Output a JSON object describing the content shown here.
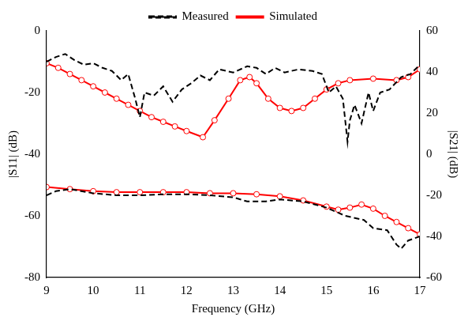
{
  "chart_data": {
    "type": "line",
    "x_label": "Frequency (GHz)",
    "y_label": "|S11| (dB)",
    "y2_label": "|S21| (dB)",
    "xlim": [
      9,
      17
    ],
    "xticks": [
      9,
      10,
      11,
      12,
      13,
      14,
      15,
      16,
      17
    ],
    "ylim": [
      -80,
      0
    ],
    "yticks": [
      -80,
      -60,
      -40,
      -20,
      0
    ],
    "y2lim": [
      -60,
      60
    ],
    "y2ticks": [
      -60,
      -40,
      -20,
      0,
      20,
      40,
      60
    ],
    "grid": false,
    "legend": "top",
    "series": [
      {
        "name": "Measured",
        "color": "#000000",
        "marker": "none",
        "line_style": "dashed",
        "axis": "y",
        "x": [
          9.0,
          9.2,
          9.4,
          9.6,
          9.8,
          10.0,
          10.2,
          10.4,
          10.6,
          10.75,
          10.9,
          11.0,
          11.1,
          11.3,
          11.5,
          11.7,
          11.9,
          12.1,
          12.3,
          12.5,
          12.7,
          13.0,
          13.3,
          13.5,
          13.7,
          13.9,
          14.1,
          14.4,
          14.7,
          14.9,
          15.05,
          15.2,
          15.35,
          15.45,
          15.5,
          15.6,
          15.75,
          15.9,
          16.0,
          16.15,
          16.35,
          16.6,
          16.8,
          17.0
        ],
        "values": [
          -10,
          -8.5,
          -7.5,
          -9.5,
          -11,
          -10.5,
          -12,
          -13,
          -16,
          -14,
          -22,
          -28,
          -20,
          -21,
          -18,
          -23,
          -19,
          -17,
          -14.5,
          -16,
          -12.5,
          -13.5,
          -11.5,
          -12,
          -14,
          -12,
          -13.5,
          -12.5,
          -13,
          -14,
          -20,
          -18,
          -22,
          -36,
          -29,
          -24,
          -30,
          -20,
          -26,
          -20,
          -19,
          -15,
          -14,
          -11
        ]
      },
      {
        "name": "Simulated",
        "color": "#ff0000",
        "marker": "circle",
        "line_style": "solid",
        "axis": "y",
        "x": [
          9.0,
          9.25,
          9.5,
          9.75,
          10.0,
          10.25,
          10.5,
          10.75,
          11.0,
          11.25,
          11.5,
          11.75,
          12.0,
          12.35,
          12.6,
          12.9,
          13.15,
          13.35,
          13.5,
          13.75,
          14.0,
          14.25,
          14.5,
          14.75,
          15.0,
          15.25,
          15.5,
          16.0,
          16.5,
          16.75,
          17.0
        ],
        "values": [
          -10.5,
          -12,
          -14,
          -16,
          -18,
          -20,
          -22,
          -24,
          -26,
          -28,
          -29.5,
          -31,
          -32.5,
          -34.5,
          -29,
          -22,
          -16,
          -15,
          -17,
          -22,
          -25,
          -26,
          -25,
          -22,
          -19,
          -17,
          -16,
          -15.5,
          -16,
          -15,
          -12.5
        ]
      },
      {
        "name": "Measured",
        "color": "#000000",
        "marker": "none",
        "line_style": "dashed",
        "axis": "y2",
        "x": [
          9.0,
          9.2,
          9.5,
          10.0,
          10.5,
          11.0,
          11.5,
          12.0,
          12.5,
          13.0,
          13.3,
          13.7,
          14.0,
          14.5,
          15.0,
          15.4,
          15.8,
          16.0,
          16.3,
          16.5,
          16.6,
          16.75,
          17.0
        ],
        "values": [
          -20,
          -18,
          -17,
          -19,
          -20,
          -20,
          -19.5,
          -19.5,
          -20,
          -21,
          -23,
          -23,
          -22,
          -23,
          -26,
          -30,
          -32,
          -36,
          -37,
          -44,
          -46,
          -42,
          -40
        ]
      },
      {
        "name": "Simulated",
        "color": "#ff0000",
        "marker": "circle",
        "line_style": "solid",
        "axis": "y2",
        "x": [
          9.0,
          9.5,
          10.0,
          10.5,
          11.0,
          11.5,
          12.0,
          12.5,
          13.0,
          13.5,
          14.0,
          14.5,
          15.0,
          15.25,
          15.5,
          15.75,
          16.0,
          16.25,
          16.5,
          16.75,
          17.0
        ],
        "values": [
          -16,
          -17,
          -18,
          -18.5,
          -18.5,
          -18.5,
          -18.5,
          -19,
          -19,
          -19.5,
          -20.5,
          -22.5,
          -25.5,
          -27,
          -26,
          -24.5,
          -26.5,
          -30,
          -33,
          -36,
          -39
        ]
      }
    ]
  }
}
